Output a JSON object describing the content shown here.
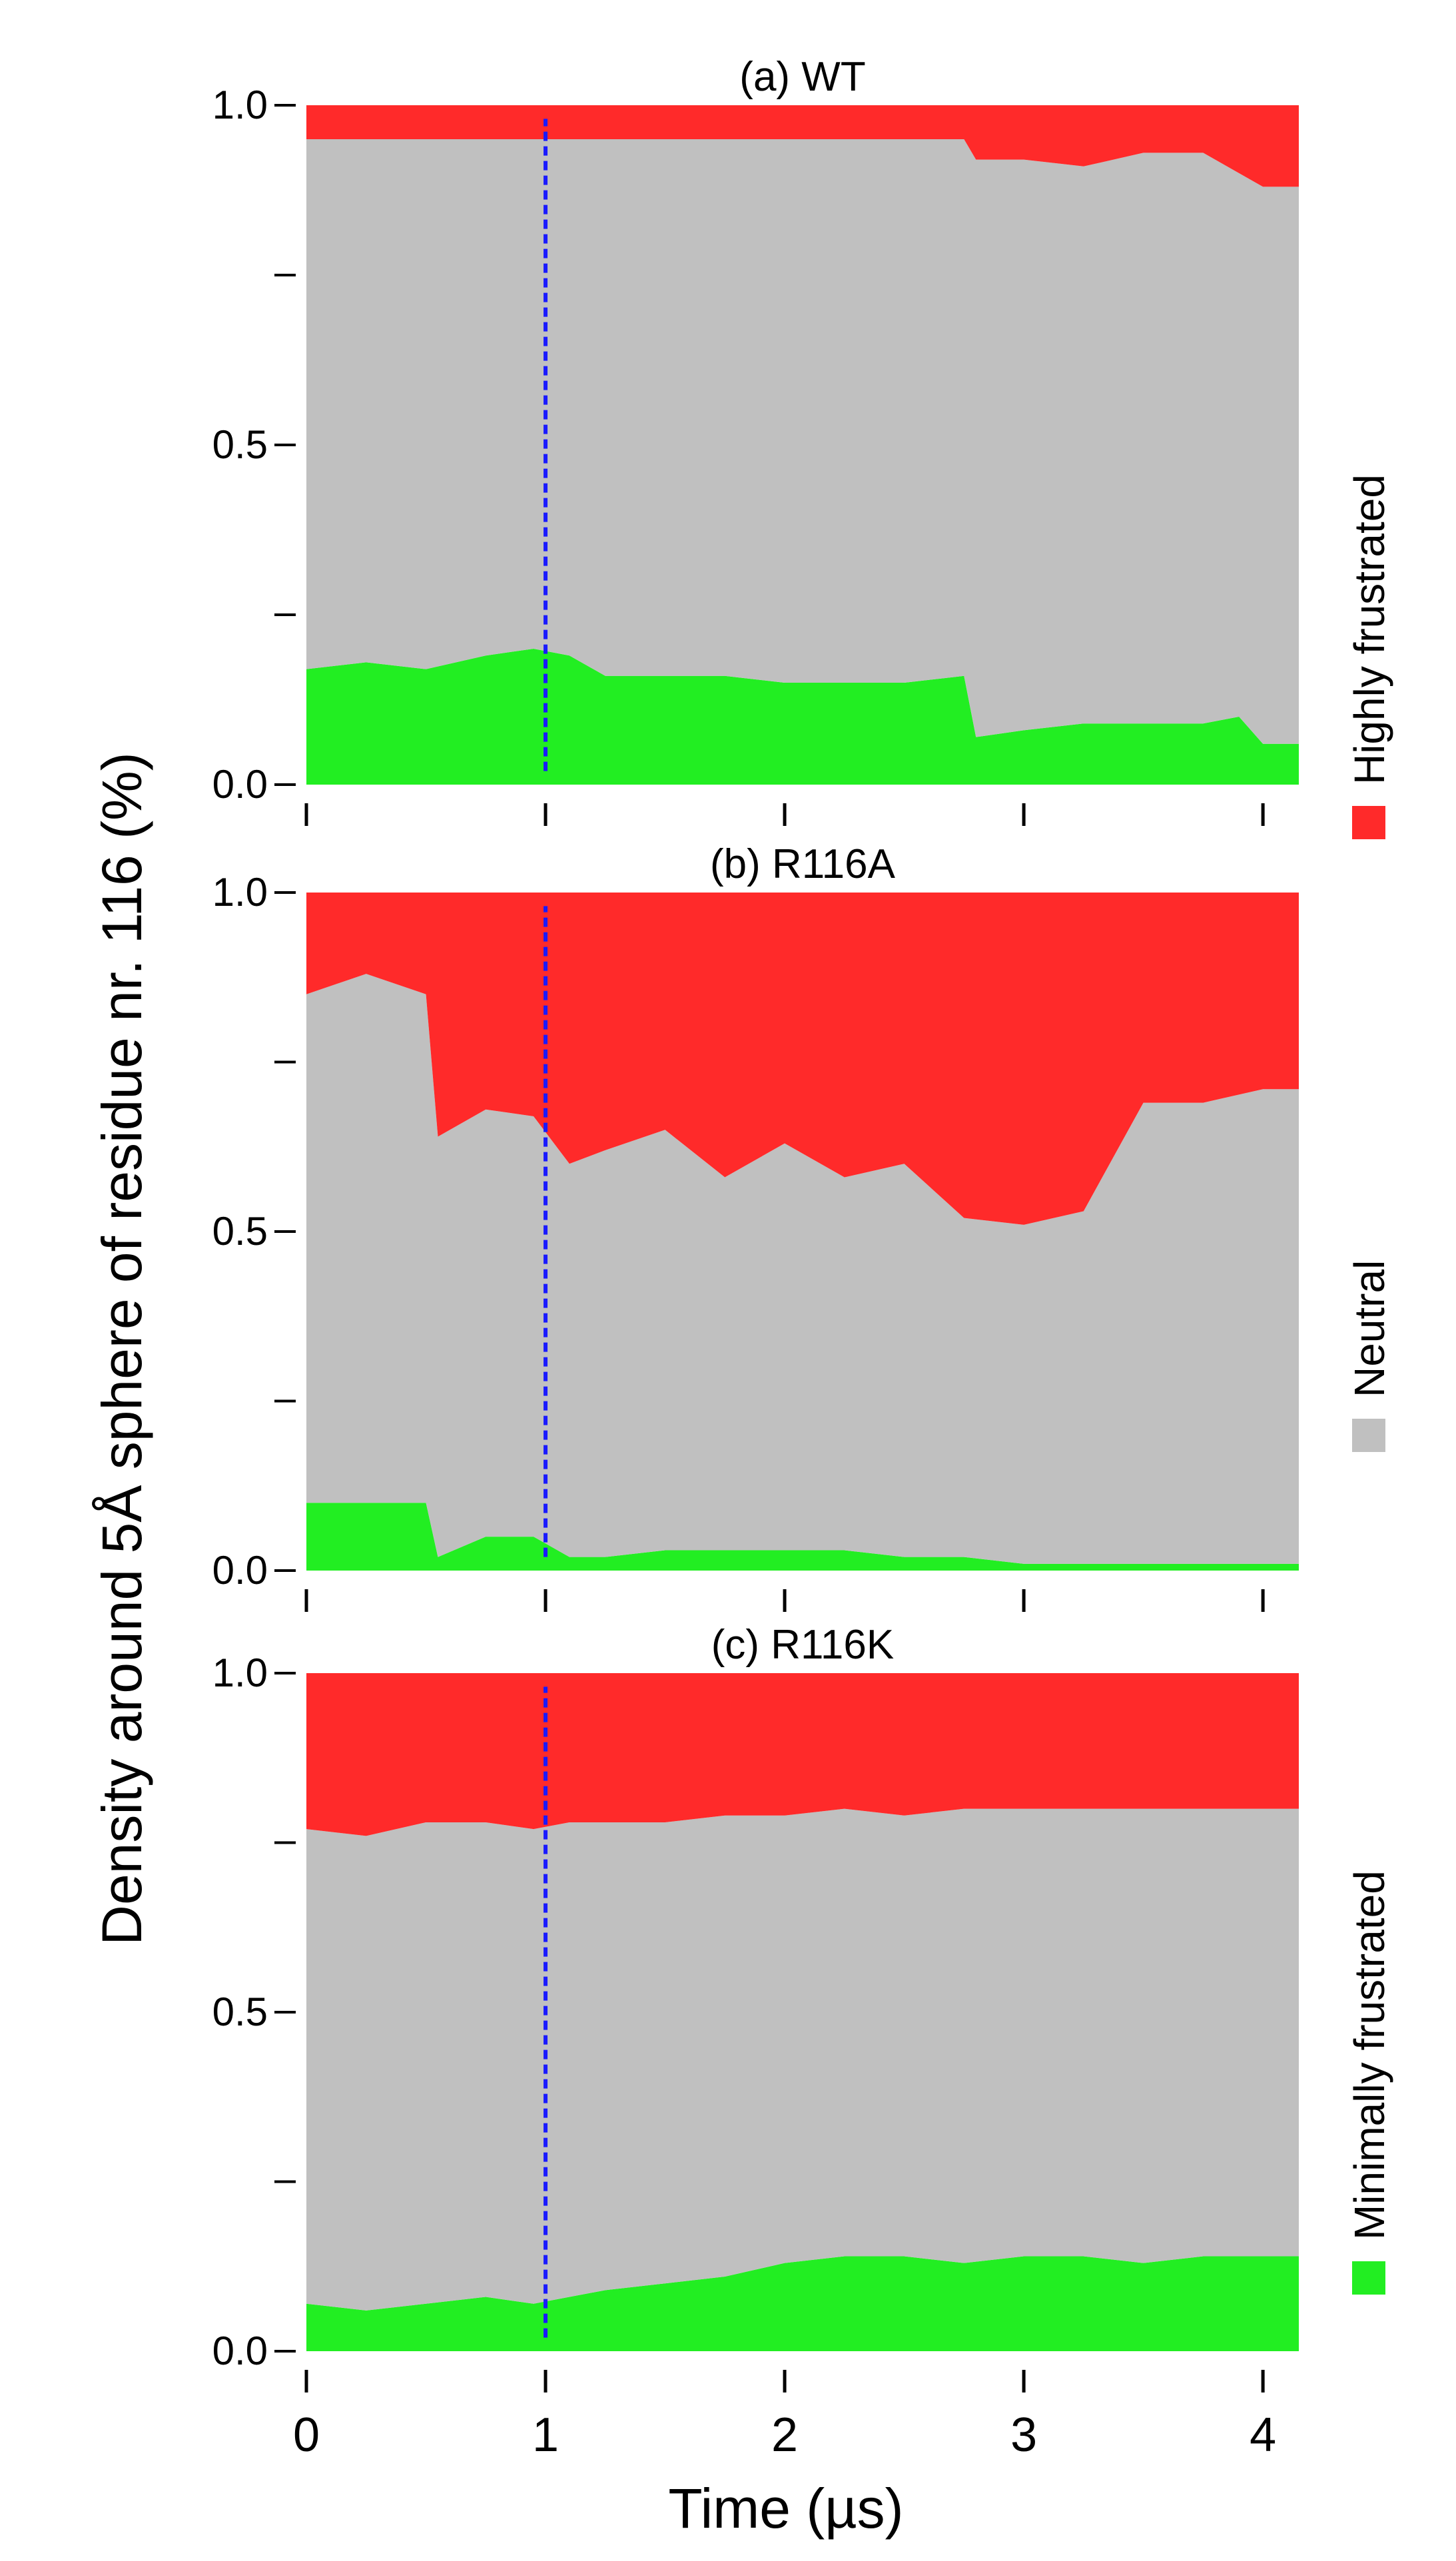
{
  "figure": {
    "ylabel": "Density around 5Å sphere of residue nr. 116 (%)",
    "xlabel": "Time (µs)"
  },
  "legend": {
    "items": [
      {
        "label": "Highly frustrated",
        "color": "#ff2a2a"
      },
      {
        "label": "Neutral",
        "color": "#c0c0c0"
      },
      {
        "label": "Minimally frustrated",
        "color": "#22ee22"
      }
    ]
  },
  "colors": {
    "highly": "#ff2a2a",
    "neutral": "#c0c0c0",
    "minimally": "#22ee22",
    "marker": "#1a1aff"
  },
  "chart_data": [
    {
      "type": "area",
      "title": "(a) WT",
      "xlim": [
        0,
        4.15
      ],
      "ylim": [
        0,
        1.0
      ],
      "yticks": [
        0.0,
        0.25,
        0.5,
        0.75,
        1.0
      ],
      "ytick_labels": [
        "0.0",
        "",
        "0.5",
        "",
        "1.0"
      ],
      "xticks": [
        0,
        1,
        2,
        3,
        4
      ],
      "xtick_labels": [
        "",
        "",
        "",
        "",
        ""
      ],
      "marker_x": 1.0,
      "x": [
        0,
        0.25,
        0.5,
        0.75,
        0.95,
        1.1,
        1.25,
        1.5,
        1.75,
        2.0,
        2.25,
        2.5,
        2.75,
        2.8,
        3.0,
        3.25,
        3.5,
        3.75,
        3.9,
        4.0,
        4.15
      ],
      "series": [
        {
          "name": "Minimally frustrated",
          "values": [
            0.17,
            0.18,
            0.17,
            0.19,
            0.2,
            0.19,
            0.16,
            0.16,
            0.16,
            0.15,
            0.15,
            0.15,
            0.16,
            0.07,
            0.08,
            0.09,
            0.09,
            0.09,
            0.1,
            0.06,
            0.06
          ]
        },
        {
          "name": "Neutral",
          "values": [
            0.78,
            0.77,
            0.78,
            0.76,
            0.75,
            0.76,
            0.79,
            0.79,
            0.79,
            0.8,
            0.8,
            0.8,
            0.79,
            0.85,
            0.84,
            0.82,
            0.84,
            0.84,
            0.8,
            0.82,
            0.82
          ]
        },
        {
          "name": "Highly frustrated",
          "values": [
            0.05,
            0.05,
            0.05,
            0.05,
            0.05,
            0.05,
            0.05,
            0.05,
            0.05,
            0.05,
            0.05,
            0.05,
            0.05,
            0.08,
            0.08,
            0.09,
            0.07,
            0.07,
            0.1,
            0.12,
            0.12
          ]
        }
      ]
    },
    {
      "type": "area",
      "title": "(b) R116A",
      "xlim": [
        0,
        4.15
      ],
      "ylim": [
        0,
        1.0
      ],
      "yticks": [
        0.0,
        0.25,
        0.5,
        0.75,
        1.0
      ],
      "ytick_labels": [
        "0.0",
        "",
        "0.5",
        "",
        "1.0"
      ],
      "xticks": [
        0,
        1,
        2,
        3,
        4
      ],
      "xtick_labels": [
        "",
        "",
        "",
        "",
        ""
      ],
      "marker_x": 1.0,
      "x": [
        0,
        0.25,
        0.5,
        0.55,
        0.75,
        0.95,
        1.1,
        1.25,
        1.5,
        1.75,
        2.0,
        2.25,
        2.5,
        2.75,
        3.0,
        3.25,
        3.5,
        3.75,
        4.0,
        4.15
      ],
      "series": [
        {
          "name": "Minimally frustrated",
          "values": [
            0.1,
            0.1,
            0.1,
            0.02,
            0.05,
            0.05,
            0.02,
            0.02,
            0.03,
            0.03,
            0.03,
            0.03,
            0.02,
            0.02,
            0.01,
            0.01,
            0.01,
            0.01,
            0.01,
            0.01
          ]
        },
        {
          "name": "Neutral",
          "values": [
            0.75,
            0.78,
            0.75,
            0.62,
            0.63,
            0.62,
            0.58,
            0.6,
            0.62,
            0.55,
            0.6,
            0.55,
            0.58,
            0.5,
            0.5,
            0.52,
            0.68,
            0.68,
            0.7,
            0.7
          ]
        },
        {
          "name": "Highly frustrated",
          "values": [
            0.15,
            0.12,
            0.15,
            0.36,
            0.32,
            0.33,
            0.4,
            0.38,
            0.35,
            0.42,
            0.37,
            0.42,
            0.4,
            0.48,
            0.49,
            0.47,
            0.31,
            0.31,
            0.29,
            0.29
          ]
        }
      ]
    },
    {
      "type": "area",
      "title": "(c) R116K",
      "xlim": [
        0,
        4.15
      ],
      "ylim": [
        0,
        1.0
      ],
      "yticks": [
        0.0,
        0.25,
        0.5,
        0.75,
        1.0
      ],
      "ytick_labels": [
        "0.0",
        "",
        "0.5",
        "",
        "1.0"
      ],
      "xticks": [
        0,
        1,
        2,
        3,
        4
      ],
      "xtick_labels": [
        "0",
        "1",
        "2",
        "3",
        "4"
      ],
      "marker_x": 1.0,
      "x": [
        0,
        0.25,
        0.5,
        0.75,
        0.95,
        1.1,
        1.25,
        1.5,
        1.75,
        2.0,
        2.25,
        2.5,
        2.75,
        3.0,
        3.25,
        3.5,
        3.75,
        4.0,
        4.15
      ],
      "series": [
        {
          "name": "Minimally frustrated",
          "values": [
            0.07,
            0.06,
            0.07,
            0.08,
            0.07,
            0.08,
            0.09,
            0.1,
            0.11,
            0.13,
            0.14,
            0.14,
            0.13,
            0.14,
            0.14,
            0.13,
            0.14,
            0.14,
            0.14
          ]
        },
        {
          "name": "Neutral",
          "values": [
            0.7,
            0.7,
            0.71,
            0.7,
            0.7,
            0.7,
            0.69,
            0.68,
            0.68,
            0.66,
            0.66,
            0.65,
            0.67,
            0.66,
            0.66,
            0.67,
            0.66,
            0.66,
            0.66
          ]
        },
        {
          "name": "Highly frustrated",
          "values": [
            0.23,
            0.24,
            0.22,
            0.22,
            0.23,
            0.22,
            0.22,
            0.22,
            0.21,
            0.21,
            0.2,
            0.21,
            0.2,
            0.2,
            0.2,
            0.2,
            0.2,
            0.2,
            0.2
          ]
        }
      ]
    }
  ]
}
